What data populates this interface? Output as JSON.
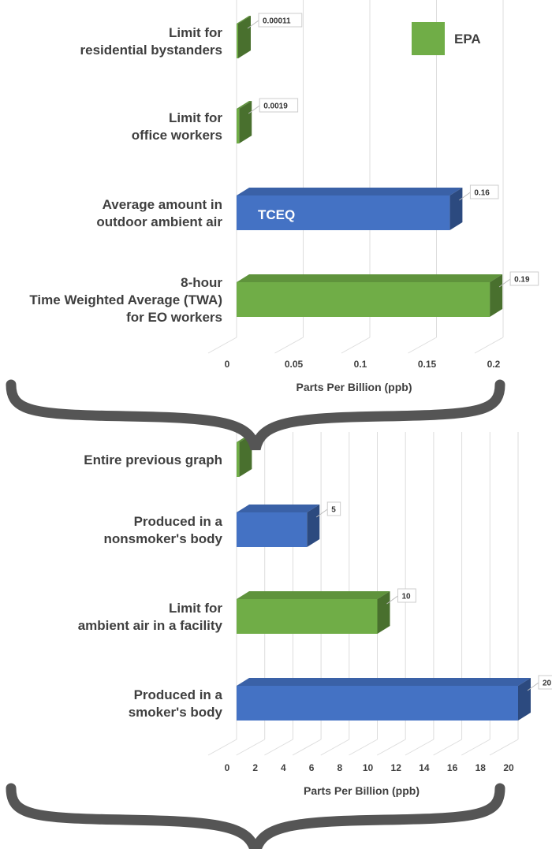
{
  "colors": {
    "epa": "#70ad47",
    "tceq": "#4472c4",
    "brace": "#555555",
    "grid": "#dddddd"
  },
  "legend": {
    "label": "EPA"
  },
  "inbar_label": "TCEQ",
  "chart_data": [
    {
      "type": "bar",
      "orientation": "horizontal",
      "categories": [
        "Limit for\nresidential bystanders",
        "Limit for\noffice workers",
        "Average amount in\noutdoor ambient air",
        "8-hour\nTime Weighted Average (TWA)\nfor EO workers"
      ],
      "values": [
        0.00011,
        0.0019,
        0.16,
        0.19
      ],
      "value_labels": [
        "0.00011",
        "0.0019",
        "0.16",
        "0.19"
      ],
      "groups": [
        "EPA",
        "EPA",
        "TCEQ",
        "EPA"
      ],
      "xlabel": "Parts Per Billion (ppb)",
      "ticks": [
        "0",
        "0.05",
        "0.1",
        "0.15",
        "0.2"
      ],
      "xlim": [
        0,
        0.2
      ],
      "grid": true
    },
    {
      "type": "bar",
      "orientation": "horizontal",
      "categories": [
        "Entire previous graph",
        "Produced in a\nnonsmoker's body",
        "Limit for\nambient air in a facility",
        "Produced in a\nsmoker's body"
      ],
      "values": [
        0.19,
        5,
        10,
        20
      ],
      "value_labels": [
        "",
        "5",
        "10",
        "20"
      ],
      "groups": [
        "EPA",
        "TCEQ",
        "EPA",
        "TCEQ"
      ],
      "xlabel": "Parts Per Billion (ppb)",
      "ticks": [
        "0",
        "2",
        "4",
        "6",
        "8",
        "10",
        "12",
        "14",
        "16",
        "18",
        "20"
      ],
      "xlim": [
        0,
        20
      ],
      "grid": true
    }
  ]
}
